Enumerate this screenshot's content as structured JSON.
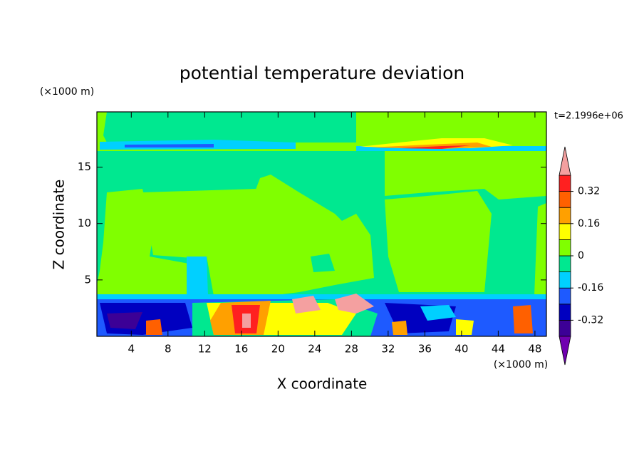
{
  "chart_data": {
    "type": "contourf",
    "title": "potential temperature deviation",
    "x_label": "X coordinate",
    "y_label": "Z coordinate",
    "x_unit": "(×1000 m)",
    "y_unit": "(×1000 m)",
    "annotation": "t=2.1996e+06",
    "xlim": [
      0.25,
      49.25
    ],
    "ylim": [
      0,
      19.9
    ],
    "xticks": [
      4,
      8,
      12,
      16,
      20,
      24,
      28,
      32,
      36,
      40,
      44,
      48
    ],
    "yticks": [
      5,
      10,
      15
    ],
    "levels": [
      -0.4,
      -0.32,
      -0.24,
      -0.16,
      -0.08,
      0,
      0.08,
      0.16,
      0.24,
      0.32,
      0.4
    ],
    "colors": [
      "#7000b0",
      "#3c0096",
      "#0000c0",
      "#1e5aff",
      "#00d0ff",
      "#00e890",
      "#80ff00",
      "#ffff00",
      "#ffa000",
      "#ff6000",
      "#ff2020",
      "#f4a0a0"
    ],
    "cbar_ticks": [
      -0.32,
      -0.16,
      0,
      0.16,
      0.32
    ]
  }
}
